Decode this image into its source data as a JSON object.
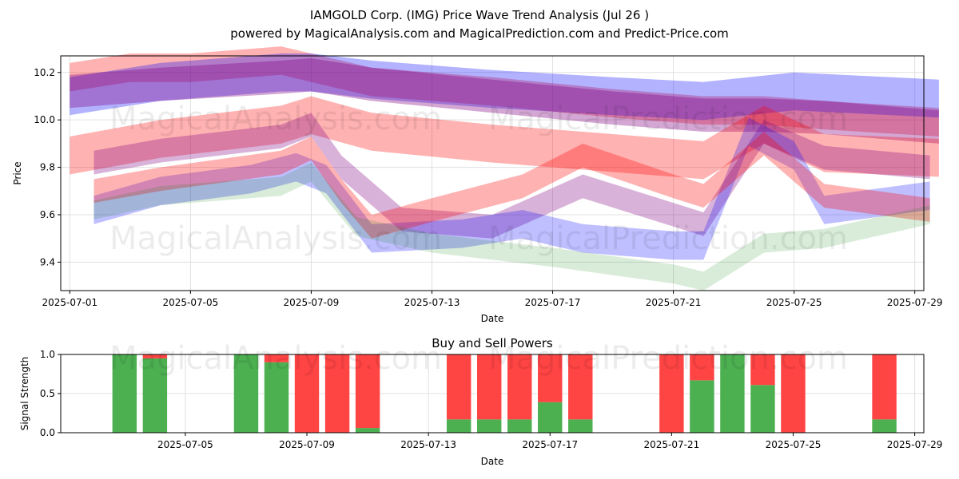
{
  "header": {
    "title": "IAMGOLD Corp. (IMG) Price Wave Trend Analysis (Jul 26 )",
    "subtitle": "powered by MagicalAnalysis.com and MagicalPrediction.com and Predict-Price.com"
  },
  "watermarks": {
    "analysis": "MagicalAnalysis.com",
    "prediction": "MagicalPrediction.com"
  },
  "colors": {
    "red": "#ff0000",
    "blue": "#0000ff",
    "green": "#008000",
    "purple": "#800080",
    "buy": "#4caf50",
    "sell": "#ff4444"
  },
  "chart_data": [
    {
      "type": "area",
      "name": "price-wave-chart",
      "title": "",
      "xlabel": "Date",
      "ylabel": "Price",
      "xlim": [
        -0.3,
        28.3
      ],
      "ylim": [
        9.28,
        10.27
      ],
      "x_tick_positions": [
        0,
        4,
        8,
        12,
        16,
        20,
        24,
        28
      ],
      "x_tick_labels": [
        "2025-07-01",
        "2025-07-05",
        "2025-07-09",
        "2025-07-13",
        "2025-07-17",
        "2025-07-21",
        "2025-07-25",
        "2025-07-29"
      ],
      "y_ticks": [
        9.4,
        9.6,
        9.8,
        10.0,
        10.2
      ],
      "y_tick_labels": [
        "9.4",
        "9.6",
        "9.8",
        "10.0",
        "10.2"
      ],
      "grid": true,
      "series": [
        {
          "name": "red-upper",
          "color": "red",
          "opacity": 0.3,
          "x": [
            0,
            2,
            4,
            6,
            7,
            8,
            10,
            14,
            18,
            21,
            23,
            25,
            28.8
          ],
          "mid": [
            10.18,
            10.22,
            10.22,
            10.24,
            10.25,
            10.22,
            10.16,
            10.12,
            10.07,
            10.04,
            10.04,
            10.02,
            9.99
          ],
          "half": [
            0.06,
            0.06,
            0.06,
            0.06,
            0.06,
            0.06,
            0.06,
            0.06,
            0.06,
            0.06,
            0.06,
            0.06,
            0.06
          ]
        },
        {
          "name": "blue-upper",
          "color": "blue",
          "opacity": 0.3,
          "x": [
            0,
            3,
            7,
            8,
            10,
            14,
            18,
            21,
            24,
            28.8
          ],
          "mid": [
            10.1,
            10.16,
            10.2,
            10.2,
            10.17,
            10.13,
            10.1,
            10.08,
            10.12,
            10.09
          ],
          "half": [
            0.08,
            0.08,
            0.08,
            0.08,
            0.08,
            0.08,
            0.08,
            0.08,
            0.08,
            0.08
          ]
        },
        {
          "name": "purple-upper",
          "color": "purple",
          "opacity": 0.35,
          "x": [
            0,
            3,
            7,
            8,
            10,
            14,
            18,
            21,
            23,
            25,
            28.8
          ],
          "mid": [
            10.12,
            10.15,
            10.18,
            10.19,
            10.15,
            10.1,
            10.05,
            10.02,
            10.02,
            10.01,
            9.97
          ],
          "half": [
            0.07,
            0.07,
            0.07,
            0.07,
            0.07,
            0.07,
            0.07,
            0.07,
            0.07,
            0.07,
            0.07
          ]
        },
        {
          "name": "red-middle",
          "color": "red",
          "opacity": 0.3,
          "x": [
            0,
            3,
            7,
            8,
            10,
            14,
            18,
            21,
            23,
            25,
            28.8
          ],
          "mid": [
            9.85,
            9.92,
            9.98,
            10.02,
            9.95,
            9.9,
            9.86,
            9.83,
            9.98,
            9.86,
            9.84
          ],
          "half": [
            0.08,
            0.08,
            0.08,
            0.08,
            0.08,
            0.08,
            0.08,
            0.08,
            0.08,
            0.08,
            0.08
          ]
        },
        {
          "name": "purple-middle",
          "color": "purple",
          "opacity": 0.3,
          "x": [
            0.8,
            3,
            7,
            8,
            9,
            11,
            14,
            17,
            20,
            21,
            23,
            25,
            28.5
          ],
          "mid": [
            9.82,
            9.87,
            9.93,
            9.98,
            9.8,
            9.58,
            9.55,
            9.72,
            9.6,
            9.56,
            9.95,
            9.84,
            9.8
          ],
          "half": [
            0.05,
            0.05,
            0.05,
            0.05,
            0.05,
            0.05,
            0.05,
            0.05,
            0.05,
            0.05,
            0.05,
            0.05,
            0.05
          ]
        },
        {
          "name": "blue-lower",
          "color": "blue",
          "opacity": 0.25,
          "x": [
            0.8,
            3,
            6,
            7.5,
            8.5,
            10,
            13,
            15,
            17,
            20,
            21,
            22.5,
            24,
            25,
            28.5
          ],
          "mid": [
            9.62,
            9.7,
            9.75,
            9.8,
            9.75,
            9.5,
            9.52,
            9.56,
            9.5,
            9.47,
            9.47,
            9.95,
            9.85,
            9.62,
            9.68
          ],
          "half": [
            0.06,
            0.06,
            0.06,
            0.06,
            0.06,
            0.06,
            0.06,
            0.06,
            0.06,
            0.06,
            0.06,
            0.06,
            0.06,
            0.06,
            0.06
          ]
        },
        {
          "name": "red-lower",
          "color": "red",
          "opacity": 0.3,
          "x": [
            0.8,
            3,
            7,
            8,
            9,
            10,
            12,
            15,
            17,
            20,
            21,
            23,
            25,
            28.5
          ],
          "mid": [
            9.7,
            9.75,
            9.82,
            9.88,
            9.7,
            9.55,
            9.62,
            9.72,
            9.85,
            9.72,
            9.68,
            9.9,
            9.68,
            9.62
          ],
          "half": [
            0.05,
            0.05,
            0.05,
            0.05,
            0.05,
            0.05,
            0.05,
            0.05,
            0.05,
            0.05,
            0.05,
            0.05,
            0.05,
            0.05
          ]
        },
        {
          "name": "green-lower",
          "color": "green",
          "opacity": 0.15,
          "x": [
            0.8,
            3,
            7,
            8,
            9.5,
            12,
            16,
            20,
            21,
            23,
            25,
            28.5
          ],
          "mid": [
            9.62,
            9.68,
            9.72,
            9.78,
            9.55,
            9.48,
            9.42,
            9.35,
            9.32,
            9.48,
            9.5,
            9.6
          ],
          "half": [
            0.04,
            0.04,
            0.04,
            0.04,
            0.04,
            0.04,
            0.04,
            0.04,
            0.04,
            0.04,
            0.04,
            0.04
          ]
        }
      ]
    },
    {
      "type": "bar",
      "name": "buy-sell-chart",
      "title": "Buy and Sell Powers",
      "xlabel": "Date",
      "ylabel": "Signal Strength",
      "xlim": [
        -0.1,
        28.3
      ],
      "ylim": [
        0,
        1.0
      ],
      "x_tick_positions": [
        4,
        8,
        12,
        16,
        20,
        24,
        28
      ],
      "x_tick_labels": [
        "2025-07-05",
        "2025-07-09",
        "2025-07-13",
        "2025-07-17",
        "2025-07-21",
        "2025-07-25",
        "2025-07-29"
      ],
      "y_ticks": [
        0,
        0.5,
        1.0
      ],
      "y_tick_labels": [
        "0.0",
        "0.5",
        "1.0"
      ],
      "grid": true,
      "bar_days": [
        2,
        3,
        6,
        7,
        8,
        9,
        10,
        13,
        14,
        15,
        16,
        17,
        20,
        21,
        22,
        23,
        24,
        27
      ],
      "buy": [
        1.0,
        0.95,
        1.0,
        0.9,
        0.0,
        0.0,
        0.06,
        0.17,
        0.17,
        0.17,
        0.39,
        0.17,
        0.0,
        0.67,
        1.0,
        0.61,
        0.0,
        0.17
      ],
      "sell": [
        0.0,
        0.05,
        0.0,
        0.1,
        1.0,
        1.0,
        0.94,
        0.83,
        0.83,
        0.83,
        0.61,
        0.83,
        1.0,
        0.33,
        0.0,
        0.39,
        1.0,
        0.83
      ]
    }
  ]
}
